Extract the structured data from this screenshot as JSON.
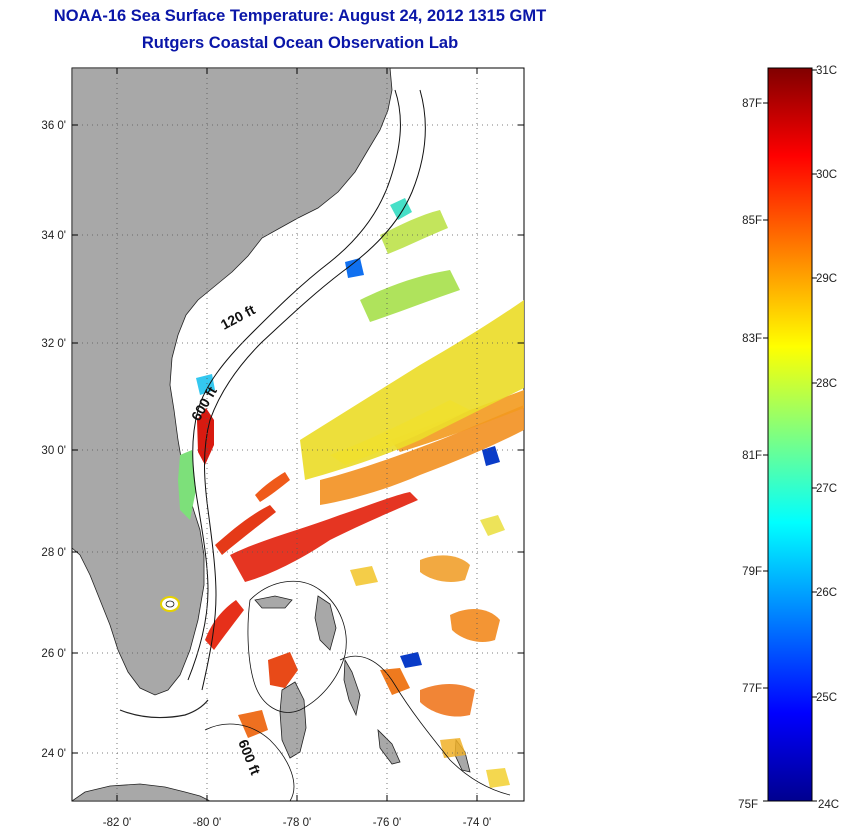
{
  "title": "NOAA-16 Sea Surface Temperature:  August 24, 2012 1315 GMT",
  "subtitle": "Rutgers Coastal Ocean Observation Lab",
  "axes": {
    "x_ticks": [
      "-82 0'",
      "-80 0'",
      "-78 0'",
      "-76 0'",
      "-74 0'"
    ],
    "y_ticks": [
      "36 0'",
      "34 0'",
      "32 0'",
      "30 0'",
      "28 0'",
      "26 0'",
      "24 0'"
    ],
    "lon_range": [
      -83,
      -73
    ],
    "lat_range": [
      23,
      37
    ]
  },
  "contours": {
    "shelf_label": "120 ft",
    "deep_label_north": "600 ft",
    "deep_label_south": "600 ft"
  },
  "colorbar": {
    "celsius_labels": [
      "31C",
      "30C",
      "29C",
      "28C",
      "27C",
      "26C",
      "25C",
      "24C"
    ],
    "fahrenheit_labels": [
      "87F",
      "85F",
      "83F",
      "81F",
      "79F",
      "77F",
      "75F"
    ],
    "range_c": [
      24,
      31
    ],
    "colors": [
      "#00008f",
      "#0000ff",
      "#00ffff",
      "#ffff00",
      "#ff0000",
      "#800000"
    ]
  },
  "colors": {
    "land": "#a8a8a8",
    "water": "#ffffff",
    "title": "#0a16a8"
  }
}
